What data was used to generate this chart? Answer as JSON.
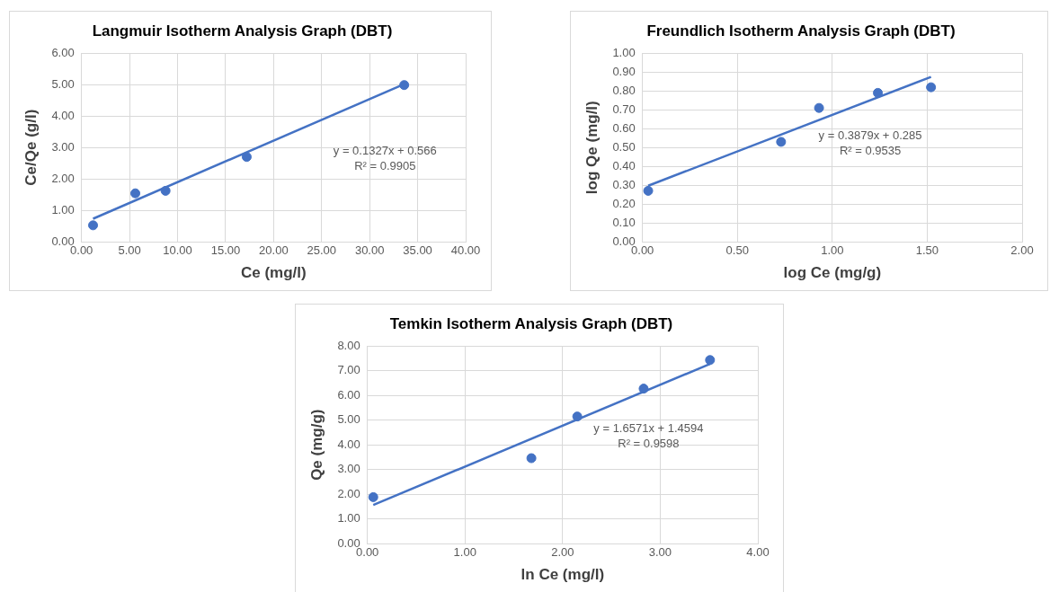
{
  "chart_data": [
    {
      "type": "scatter",
      "title": "Langmuir Isotherm Analysis Graph (DBT)",
      "xlabel": "Ce (mg/l)",
      "ylabel": "Ce/Qe (g/l)",
      "series": [
        {
          "type": "scatter",
          "color": "#4472c4",
          "marker": "circle",
          "x": [
            1.2,
            5.6,
            8.75,
            17.2,
            33.6
          ],
          "values": [
            0.52,
            1.54,
            1.62,
            2.7,
            4.99
          ]
        },
        {
          "type": "line",
          "color": "#4472c4",
          "marker": "none",
          "line_style": "solid",
          "x": [
            1.2,
            33.6
          ],
          "values": [
            0.73,
            5.02
          ]
        }
      ],
      "xlim": [
        0,
        40
      ],
      "xticks": [
        {
          "value": 0,
          "label": "0.00"
        },
        {
          "value": 5,
          "label": "5.00"
        },
        {
          "value": 10,
          "label": "10.00"
        },
        {
          "value": 15,
          "label": "15.00"
        },
        {
          "value": 20,
          "label": "20.00"
        },
        {
          "value": 25,
          "label": "25.00"
        },
        {
          "value": 30,
          "label": "30.00"
        },
        {
          "value": 35,
          "label": "35.00"
        },
        {
          "value": 40,
          "label": "40.00"
        }
      ],
      "ylim": [
        0,
        6
      ],
      "yticks": [
        {
          "value": 0,
          "label": "0.00"
        },
        {
          "value": 1,
          "label": "1.00"
        },
        {
          "value": 2,
          "label": "2.00"
        },
        {
          "value": 3,
          "label": "3.00"
        },
        {
          "value": 4,
          "label": "4.00"
        },
        {
          "value": 5,
          "label": "5.00"
        },
        {
          "value": 6,
          "label": "6.00"
        }
      ],
      "annotations": [
        "y = 0.1327x + 0.566",
        "R² = 0.9905"
      ],
      "grid": true,
      "legend": false
    },
    {
      "type": "scatter",
      "title": "Freundlich Isotherm Analysis Graph (DBT)",
      "xlabel": "log Ce (mg/g)",
      "ylabel": "log Qe (mg/l)",
      "series": [
        {
          "type": "scatter",
          "color": "#4472c4",
          "marker": "circle",
          "x": [
            0.03,
            0.73,
            0.93,
            1.24,
            1.52
          ],
          "values": [
            0.27,
            0.53,
            0.71,
            0.79,
            0.82
          ]
        },
        {
          "type": "line",
          "color": "#4472c4",
          "marker": "none",
          "line_style": "solid",
          "x": [
            0.03,
            1.52
          ],
          "values": [
            0.297,
            0.875
          ]
        }
      ],
      "xlim": [
        0,
        2
      ],
      "xticks": [
        {
          "value": 0,
          "label": "0.00"
        },
        {
          "value": 0.5,
          "label": "0.50"
        },
        {
          "value": 1,
          "label": "1.00"
        },
        {
          "value": 1.5,
          "label": "1.50"
        },
        {
          "value": 2,
          "label": "2.00"
        }
      ],
      "ylim": [
        0,
        1
      ],
      "yticks": [
        {
          "value": 0,
          "label": "0.00"
        },
        {
          "value": 0.1,
          "label": "0.10"
        },
        {
          "value": 0.2,
          "label": "0.20"
        },
        {
          "value": 0.3,
          "label": "0.30"
        },
        {
          "value": 0.4,
          "label": "0.40"
        },
        {
          "value": 0.5,
          "label": "0.50"
        },
        {
          "value": 0.6,
          "label": "0.60"
        },
        {
          "value": 0.7,
          "label": "0.70"
        },
        {
          "value": 0.8,
          "label": "0.80"
        },
        {
          "value": 0.9,
          "label": "0.90"
        },
        {
          "value": 1,
          "label": "1.00"
        }
      ],
      "annotations": [
        "y = 0.3879x + 0.285",
        "R² = 0.9535"
      ],
      "grid": true,
      "legend": false
    },
    {
      "type": "scatter",
      "title": "Temkin Isotherm Analysis Graph (DBT)",
      "xlabel": "ln Ce (mg/l)",
      "ylabel": "Qe (mg/g)",
      "series": [
        {
          "type": "scatter",
          "color": "#4472c4",
          "marker": "circle",
          "x": [
            0.06,
            1.68,
            2.15,
            2.83,
            3.51
          ],
          "values": [
            1.88,
            3.46,
            5.15,
            6.28,
            7.44
          ]
        },
        {
          "type": "line",
          "color": "#4472c4",
          "marker": "none",
          "line_style": "solid",
          "x": [
            0.06,
            3.51
          ],
          "values": [
            1.56,
            7.28
          ]
        }
      ],
      "xlim": [
        0,
        4
      ],
      "xticks": [
        {
          "value": 0,
          "label": "0.00"
        },
        {
          "value": 1,
          "label": "1.00"
        },
        {
          "value": 2,
          "label": "2.00"
        },
        {
          "value": 3,
          "label": "3.00"
        },
        {
          "value": 4,
          "label": "4.00"
        }
      ],
      "ylim": [
        0,
        8
      ],
      "yticks": [
        {
          "value": 0,
          "label": "0.00"
        },
        {
          "value": 1,
          "label": "1.00"
        },
        {
          "value": 2,
          "label": "2.00"
        },
        {
          "value": 3,
          "label": "3.00"
        },
        {
          "value": 4,
          "label": "4.00"
        },
        {
          "value": 5,
          "label": "5.00"
        },
        {
          "value": 6,
          "label": "6.00"
        },
        {
          "value": 7,
          "label": "7.00"
        },
        {
          "value": 8,
          "label": "8.00"
        }
      ],
      "annotations": [
        "y = 1.6571x + 1.4594",
        "R² = 0.9598"
      ],
      "grid": true,
      "legend": false
    }
  ]
}
